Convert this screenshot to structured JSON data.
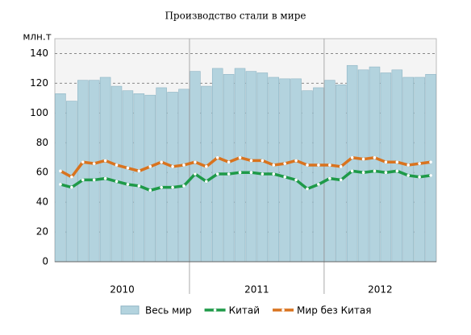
{
  "chart_data": {
    "type": "bar_line",
    "title": "Производство стали в мире",
    "y_label": "млн.т",
    "categories": [
      null,
      null,
      null,
      null,
      null,
      null,
      null,
      null,
      null,
      null,
      null,
      null,
      null,
      null,
      null,
      null,
      null,
      null,
      null,
      null,
      null,
      null,
      null,
      null,
      null,
      null,
      null,
      null,
      null,
      null,
      null,
      null,
      null,
      null
    ],
    "year_labels": [
      "2010",
      "2011",
      "2012"
    ],
    "ylim": [
      0,
      150
    ],
    "yticks": [
      0,
      20,
      40,
      60,
      80,
      100,
      120,
      140
    ],
    "grid": true,
    "series": [
      {
        "name": "Весь мир",
        "kind": "bar",
        "color": "#b3d3de",
        "values": [
          113,
          108,
          122,
          122,
          124,
          118,
          115,
          113,
          112,
          117,
          114,
          116,
          128,
          118,
          130,
          126,
          130,
          128,
          127,
          124,
          123,
          123,
          115,
          117,
          122,
          119,
          132,
          129,
          131,
          127,
          129,
          124,
          124,
          126
        ]
      },
      {
        "name": "Китай",
        "kind": "line",
        "color": "#1e9a48",
        "values": [
          52,
          50,
          55,
          55,
          56,
          54,
          52,
          51,
          48,
          50,
          50,
          51,
          59,
          54,
          59,
          59,
          60,
          60,
          59,
          59,
          57,
          55,
          49,
          52,
          56,
          55,
          61,
          60,
          61,
          60,
          61,
          58,
          57,
          58
        ]
      },
      {
        "name": "Мир без Китая",
        "kind": "line",
        "color": "#d9731e",
        "values": [
          61,
          57,
          67,
          66,
          68,
          65,
          63,
          61,
          64,
          67,
          64,
          65,
          67,
          64,
          70,
          67,
          70,
          68,
          68,
          65,
          66,
          68,
          65,
          65,
          65,
          64,
          70,
          69,
          70,
          67,
          67,
          65,
          66,
          67
        ]
      }
    ]
  }
}
